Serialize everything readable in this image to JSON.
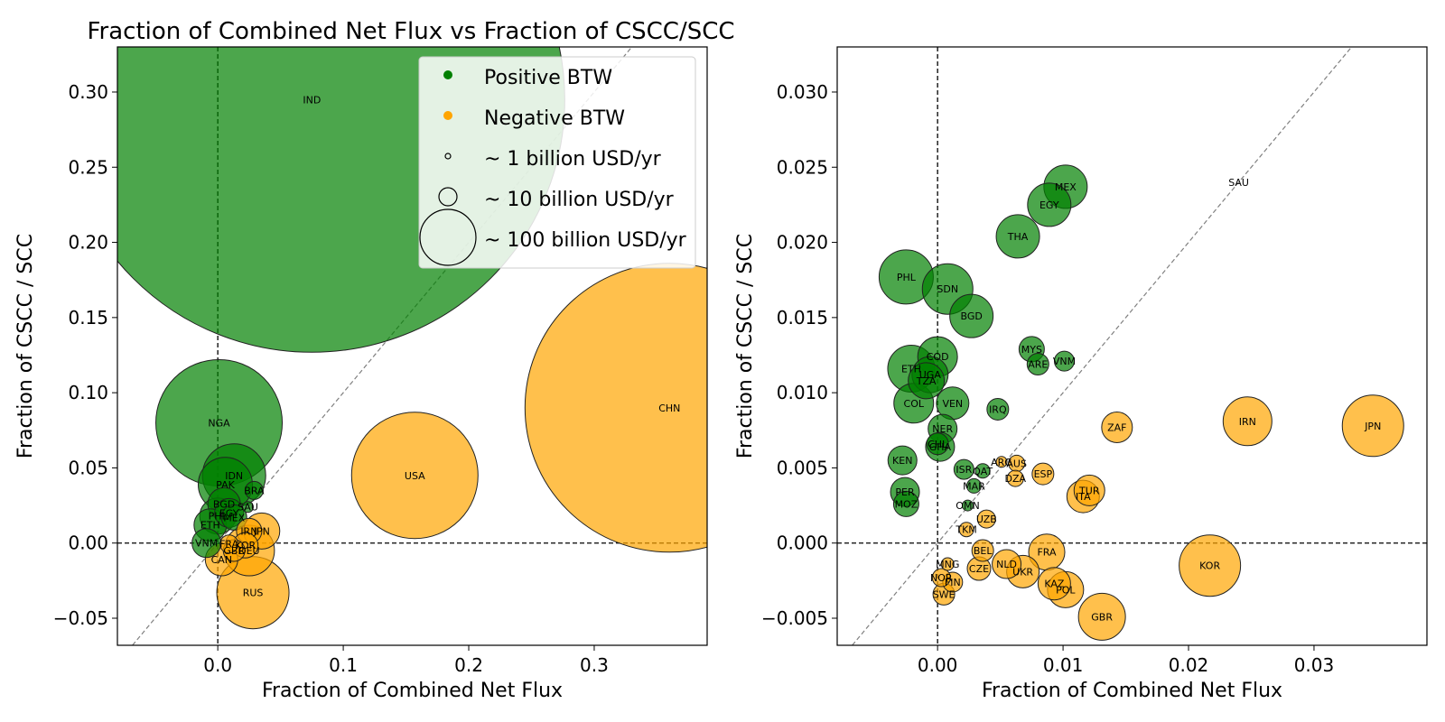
{
  "colors": {
    "positive": "#008000",
    "negative": "#ffa500",
    "edge": "#222222",
    "diagonal": "#808080"
  },
  "figure": {
    "title": "Fraction of Combined Net Flux vs Fraction of CSCC/SCC"
  },
  "legend": {
    "placement": "top-right of left panel",
    "items": [
      {
        "label": "Positive BTW",
        "kind": "positive"
      },
      {
        "label": "Negative BTW",
        "kind": "negative"
      },
      {
        "label": "~ 1 billion USD/yr",
        "kind": "size",
        "billion": 1
      },
      {
        "label": "~ 10 billion USD/yr",
        "kind": "size",
        "billion": 10
      },
      {
        "label": "~ 100 billion USD/yr",
        "kind": "size",
        "billion": 100
      }
    ]
  },
  "chart_data": [
    {
      "type": "scatter",
      "title": "Fraction of Combined Net Flux vs Fraction of CSCC/SCC",
      "xlabel": "Fraction of Combined Net Flux",
      "ylabel": "Fraction of CSCC / SCC",
      "xlim": [
        -0.08,
        0.39
      ],
      "ylim": [
        -0.068,
        0.33
      ],
      "xticks": [
        0.0,
        0.1,
        0.2,
        0.3
      ],
      "xtick_labels": [
        "0.0",
        "0.1",
        "0.2",
        "0.3"
      ],
      "yticks": [
        -0.05,
        0.0,
        0.05,
        0.1,
        0.15,
        0.2,
        0.25,
        0.3
      ],
      "ytick_labels": [
        "−0.05",
        "0.00",
        "0.05",
        "0.10",
        "0.15",
        "0.20",
        "0.25",
        "0.30"
      ],
      "diagonal": "y = x",
      "zero_lines": true,
      "points": [
        {
          "label": "IND",
          "x": 0.075,
          "y": 0.295,
          "size": 280,
          "btw": "positive"
        },
        {
          "label": "NGA",
          "x": 0.001,
          "y": 0.08,
          "size": 70,
          "btw": "positive"
        },
        {
          "label": "IDN",
          "x": 0.013,
          "y": 0.045,
          "size": 35,
          "btw": "positive"
        },
        {
          "label": "PAK",
          "x": 0.006,
          "y": 0.039,
          "size": 30,
          "btw": "positive"
        },
        {
          "label": "BRA",
          "x": 0.029,
          "y": 0.035,
          "size": 10,
          "btw": "positive"
        },
        {
          "label": "BGD",
          "x": 0.005,
          "y": 0.026,
          "size": 18,
          "btw": "positive"
        },
        {
          "label": "SAU",
          "x": 0.024,
          "y": 0.024,
          "size": 6,
          "btw": "positive"
        },
        {
          "label": "PHL",
          "x": 0.0,
          "y": 0.018,
          "size": 20,
          "btw": "positive"
        },
        {
          "label": "EGY",
          "x": 0.009,
          "y": 0.02,
          "size": 16,
          "btw": "positive"
        },
        {
          "label": "ETH",
          "x": -0.006,
          "y": 0.012,
          "size": 18,
          "btw": "positive"
        },
        {
          "label": "MEX",
          "x": 0.013,
          "y": 0.017,
          "size": 14,
          "btw": "positive"
        },
        {
          "label": "VNM",
          "x": -0.009,
          "y": 0.0,
          "size": 16,
          "btw": "positive"
        },
        {
          "label": "CHN",
          "x": 0.36,
          "y": 0.09,
          "size": 160,
          "btw": "negative"
        },
        {
          "label": "USA",
          "x": 0.157,
          "y": 0.045,
          "size": 70,
          "btw": "negative"
        },
        {
          "label": "RUS",
          "x": 0.028,
          "y": -0.033,
          "size": 40,
          "btw": "negative"
        },
        {
          "label": "JPN",
          "x": 0.035,
          "y": 0.008,
          "size": 20,
          "btw": "negative"
        },
        {
          "label": "IRN",
          "x": 0.025,
          "y": 0.008,
          "size": 14,
          "btw": "negative"
        },
        {
          "label": "DEU",
          "x": 0.025,
          "y": -0.005,
          "size": 28,
          "btw": "negative"
        },
        {
          "label": "CAN",
          "x": 0.003,
          "y": -0.011,
          "size": 18,
          "btw": "negative"
        },
        {
          "label": "KOR",
          "x": 0.022,
          "y": -0.0015,
          "size": 14,
          "btw": "negative"
        },
        {
          "label": "GBR",
          "x": 0.013,
          "y": -0.005,
          "size": 12,
          "btw": "negative"
        },
        {
          "label": "FRA",
          "x": 0.009,
          "y": -0.0006,
          "size": 10,
          "btw": "negative"
        }
      ]
    },
    {
      "type": "scatter",
      "xlabel": "Fraction of Combined Net Flux",
      "ylabel": "Fraction of CSCC / SCC",
      "xlim": [
        -0.008,
        0.039
      ],
      "ylim": [
        -0.0068,
        0.033
      ],
      "xticks": [
        0.0,
        0.01,
        0.02,
        0.03
      ],
      "xtick_labels": [
        "0.00",
        "0.01",
        "0.02",
        "0.03"
      ],
      "yticks": [
        -0.005,
        0.0,
        0.005,
        0.01,
        0.015,
        0.02,
        0.025,
        0.03
      ],
      "ytick_labels": [
        "−0.005",
        "0.000",
        "0.005",
        "0.010",
        "0.015",
        "0.020",
        "0.025",
        "0.030"
      ],
      "diagonal": "y = x",
      "zero_lines": true,
      "points": [
        {
          "label": "MEX",
          "x": 0.0102,
          "y": 0.0237,
          "size": 24,
          "btw": "positive"
        },
        {
          "label": "EGY",
          "x": 0.0089,
          "y": 0.0225,
          "size": 24,
          "btw": "positive"
        },
        {
          "label": "THA",
          "x": 0.0064,
          "y": 0.0204,
          "size": 24,
          "btw": "positive"
        },
        {
          "label": "PHL",
          "x": -0.0025,
          "y": 0.0177,
          "size": 30,
          "btw": "positive"
        },
        {
          "label": "SDN",
          "x": 0.0008,
          "y": 0.0169,
          "size": 28,
          "btw": "positive"
        },
        {
          "label": "BGD",
          "x": 0.0027,
          "y": 0.0151,
          "size": 24,
          "btw": "positive"
        },
        {
          "label": "MYS",
          "x": 0.0075,
          "y": 0.0129,
          "size": 14,
          "btw": "positive"
        },
        {
          "label": "VNM",
          "x": 0.0101,
          "y": 0.0121,
          "size": 11,
          "btw": "positive"
        },
        {
          "label": "ARE",
          "x": 0.008,
          "y": 0.0119,
          "size": 12,
          "btw": "positive"
        },
        {
          "label": "COD",
          "x": 0.0,
          "y": 0.0124,
          "size": 22,
          "btw": "positive"
        },
        {
          "label": "ETH",
          "x": -0.0021,
          "y": 0.0116,
          "size": 26,
          "btw": "positive"
        },
        {
          "label": "UGA",
          "x": -0.0006,
          "y": 0.0112,
          "size": 20,
          "btw": "positive"
        },
        {
          "label": "TZA",
          "x": -0.0009,
          "y": 0.0108,
          "size": 20,
          "btw": "positive"
        },
        {
          "label": "COL",
          "x": -0.0019,
          "y": 0.0093,
          "size": 22,
          "btw": "positive"
        },
        {
          "label": "VEN",
          "x": 0.0012,
          "y": 0.0093,
          "size": 18,
          "btw": "positive"
        },
        {
          "label": "IRQ",
          "x": 0.0048,
          "y": 0.0089,
          "size": 12,
          "btw": "positive"
        },
        {
          "label": "NER",
          "x": 0.0004,
          "y": 0.0076,
          "size": 16,
          "btw": "positive"
        },
        {
          "label": "GHA",
          "x": 0.0002,
          "y": 0.0064,
          "size": 16,
          "btw": "positive"
        },
        {
          "label": "CHL",
          "x": 0.0,
          "y": 0.0066,
          "size": 12,
          "btw": "positive"
        },
        {
          "label": "KEN",
          "x": -0.0028,
          "y": 0.0055,
          "size": 16,
          "btw": "positive"
        },
        {
          "label": "ISR",
          "x": 0.0021,
          "y": 0.0049,
          "size": 11,
          "btw": "positive"
        },
        {
          "label": "QAT",
          "x": 0.0036,
          "y": 0.0048,
          "size": 8,
          "btw": "positive"
        },
        {
          "label": "PER",
          "x": -0.0026,
          "y": 0.0034,
          "size": 16,
          "btw": "positive"
        },
        {
          "label": "MAR",
          "x": 0.0029,
          "y": 0.0038,
          "size": 8,
          "btw": "positive"
        },
        {
          "label": "MOZ",
          "x": -0.0025,
          "y": 0.0026,
          "size": 14,
          "btw": "positive"
        },
        {
          "label": "OMN",
          "x": 0.0024,
          "y": 0.0025,
          "size": 6,
          "btw": "positive"
        },
        {
          "label": "ARG",
          "x": 0.0051,
          "y": 0.0054,
          "size": 6,
          "btw": "negative"
        },
        {
          "label": "AUS",
          "x": 0.0063,
          "y": 0.0053,
          "size": 9,
          "btw": "negative"
        },
        {
          "label": "ESP",
          "x": 0.0084,
          "y": 0.0046,
          "size": 12,
          "btw": "negative"
        },
        {
          "label": "DZA",
          "x": 0.0062,
          "y": 0.0043,
          "size": 9,
          "btw": "negative"
        },
        {
          "label": "ZAF",
          "x": 0.0143,
          "y": 0.0077,
          "size": 17,
          "btw": "negative"
        },
        {
          "label": "IRN",
          "x": 0.0247,
          "y": 0.0081,
          "size": 27,
          "btw": "negative"
        },
        {
          "label": "JPN",
          "x": 0.0347,
          "y": 0.0078,
          "size": 34,
          "btw": "negative"
        },
        {
          "label": "TUR",
          "x": 0.0121,
          "y": 0.0035,
          "size": 17,
          "btw": "negative"
        },
        {
          "label": "ITA",
          "x": 0.0116,
          "y": 0.0031,
          "size": 18,
          "btw": "negative"
        },
        {
          "label": "UZB",
          "x": 0.0039,
          "y": 0.0016,
          "size": 10,
          "btw": "negative"
        },
        {
          "label": "TKM",
          "x": 0.0023,
          "y": 0.0009,
          "size": 8,
          "btw": "negative"
        },
        {
          "label": "FRA",
          "x": 0.0087,
          "y": -0.0006,
          "size": 20,
          "btw": "negative"
        },
        {
          "label": "BEL",
          "x": 0.0036,
          "y": -0.0005,
          "size": 12,
          "btw": "negative"
        },
        {
          "label": "NLD",
          "x": 0.0055,
          "y": -0.0014,
          "size": 16,
          "btw": "negative"
        },
        {
          "label": "UKR",
          "x": 0.0068,
          "y": -0.0019,
          "size": 18,
          "btw": "negative"
        },
        {
          "label": "CZE",
          "x": 0.0033,
          "y": -0.0017,
          "size": 13,
          "btw": "negative"
        },
        {
          "label": "KOR",
          "x": 0.0217,
          "y": -0.0015,
          "size": 34,
          "btw": "negative"
        },
        {
          "label": "KAZ",
          "x": 0.0093,
          "y": -0.0027,
          "size": 18,
          "btw": "negative"
        },
        {
          "label": "POL",
          "x": 0.0102,
          "y": -0.0031,
          "size": 20,
          "btw": "negative"
        },
        {
          "label": "GBR",
          "x": 0.0131,
          "y": -0.0049,
          "size": 26,
          "btw": "negative"
        },
        {
          "label": "FIN",
          "x": 0.0012,
          "y": -0.0026,
          "size": 11,
          "btw": "negative"
        },
        {
          "label": "NOR",
          "x": 0.0003,
          "y": -0.0023,
          "size": 10,
          "btw": "negative"
        },
        {
          "label": "SWE",
          "x": 0.0005,
          "y": -0.0034,
          "size": 12,
          "btw": "negative"
        },
        {
          "label": "MNG",
          "x": 0.0008,
          "y": -0.0014,
          "size": 7,
          "btw": "negative"
        },
        {
          "label": "SAU",
          "x": 0.024,
          "y": 0.024,
          "size": 0,
          "btw": "positive"
        }
      ]
    }
  ]
}
